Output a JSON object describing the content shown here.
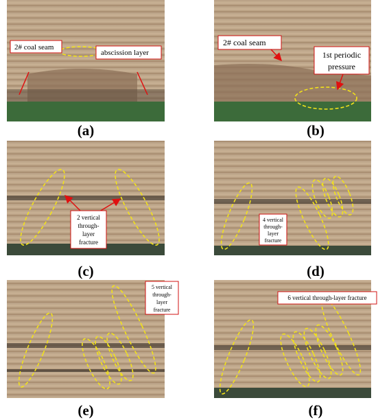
{
  "panels": [
    {
      "label": "(a)",
      "annotations": [
        {
          "lines": [
            "2# coal seam"
          ]
        },
        {
          "lines": [
            "abscission layer"
          ]
        }
      ]
    },
    {
      "label": "(b)",
      "annotations": [
        {
          "lines": [
            "2# coal seam"
          ]
        },
        {
          "lines": [
            "1st periodic",
            "pressure"
          ]
        }
      ]
    },
    {
      "label": "(c)",
      "annotations": [
        {
          "lines": [
            "2 vertical",
            "through-",
            "layer",
            "fracture"
          ]
        }
      ]
    },
    {
      "label": "(d)",
      "annotations": [
        {
          "lines": [
            "4 vertical",
            "through-",
            "layer",
            "fracture"
          ]
        }
      ]
    },
    {
      "label": "(e)",
      "annotations": [
        {
          "lines": [
            "5 vertical",
            "through-",
            "layer",
            "fracture"
          ]
        }
      ]
    },
    {
      "label": "(f)",
      "annotations": [
        {
          "lines": [
            "6 vertical through-layer fracture"
          ]
        }
      ]
    }
  ]
}
